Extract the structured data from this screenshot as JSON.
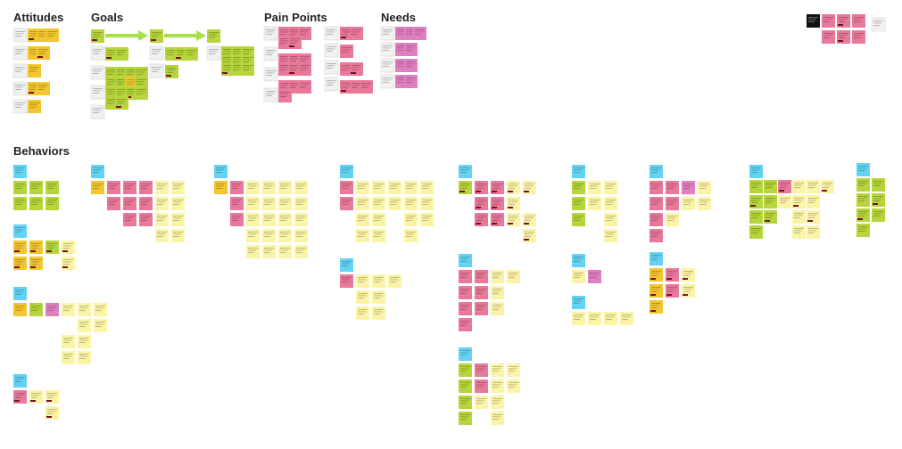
{
  "headings": [
    "Attitudes",
    "Goals",
    "Pain Points",
    "Needs",
    "Behaviors"
  ]
}
